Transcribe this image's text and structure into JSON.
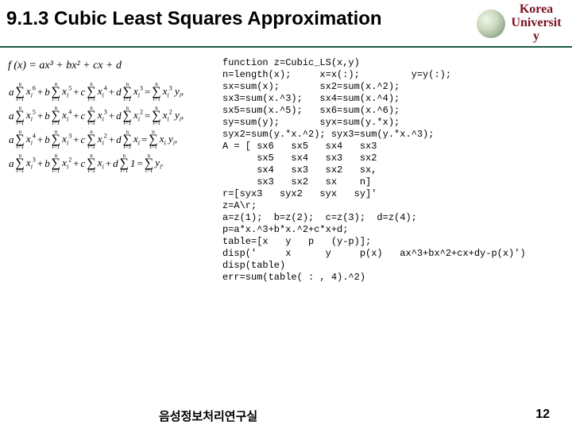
{
  "header": {
    "title": "9.1.3 Cubic Least Squares Approximation",
    "title_fontsize": 24,
    "title_color": "#000000",
    "underline_color": "#1a5a40",
    "org_line1": "Korea",
    "org_line2": "Universit",
    "org_line3": "y",
    "org_fontsize": 16,
    "org_color": "#7b1020"
  },
  "math": {
    "poly": "f (x) = ax³ + bx² + cx + d",
    "poly_fontsize": 14,
    "eq_fontsize": 13,
    "rows": [
      {
        "coeffs": [
          "a",
          "b",
          "c",
          "d"
        ],
        "xpows": [
          "6",
          "5",
          "4",
          "3"
        ],
        "rhs_xpow": "3"
      },
      {
        "coeffs": [
          "a",
          "b",
          "c",
          "d"
        ],
        "xpows": [
          "5",
          "4",
          "3",
          "2"
        ],
        "rhs_xpow": "2"
      },
      {
        "coeffs": [
          "a",
          "b",
          "c",
          "d"
        ],
        "xpows": [
          "4",
          "3",
          "2",
          ""
        ],
        "rhs_xpow": ""
      },
      {
        "coeffs": [
          "a",
          "b",
          "c",
          "d"
        ],
        "xpows": [
          "3",
          "2",
          "",
          ""
        ],
        "rhs_xpow": "",
        "last_is_one": true,
        "rhs_is_y": true
      }
    ],
    "sum_top": "n",
    "sum_bot": "i=1"
  },
  "code": {
    "fontsize": 12,
    "text": "function z=Cubic_LS(x,y)\nn=length(x);     x=x(:);         y=y(:);\nsx=sum(x);       sx2=sum(x.^2);\nsx3=sum(x.^3);   sx4=sum(x.^4);\nsx5=sum(x.^5);   sx6=sum(x.^6);\nsy=sum(y);       syx=sum(y.*x);\nsyx2=sum(y.*x.^2); syx3=sum(y.*x.^3);\nA = [ sx6   sx5   sx4   sx3\n      sx5   sx4   sx3   sx2\n      sx4   sx3   sx2   sx,\n      sx3   sx2   sx    n]\nr=[syx3   syx2   syx   sy]'\nz=A\\r;\na=z(1);  b=z(2);  c=z(3);  d=z(4);\np=a*x.^3+b*x.^2+c*x+d;\ntable=[x   y   p   (y-p)];\ndisp('     x      y     p(x)   ax^3+bx^2+cx+dy-p(x)')\ndisp(table)\nerr=sum(table( : , 4).^2)"
  },
  "footer": {
    "lab": "음성정보처리연구실",
    "lab_fontsize": 15,
    "page": "12",
    "page_fontsize": 16
  },
  "colors": {
    "background": "#ffffff",
    "text": "#000000"
  }
}
